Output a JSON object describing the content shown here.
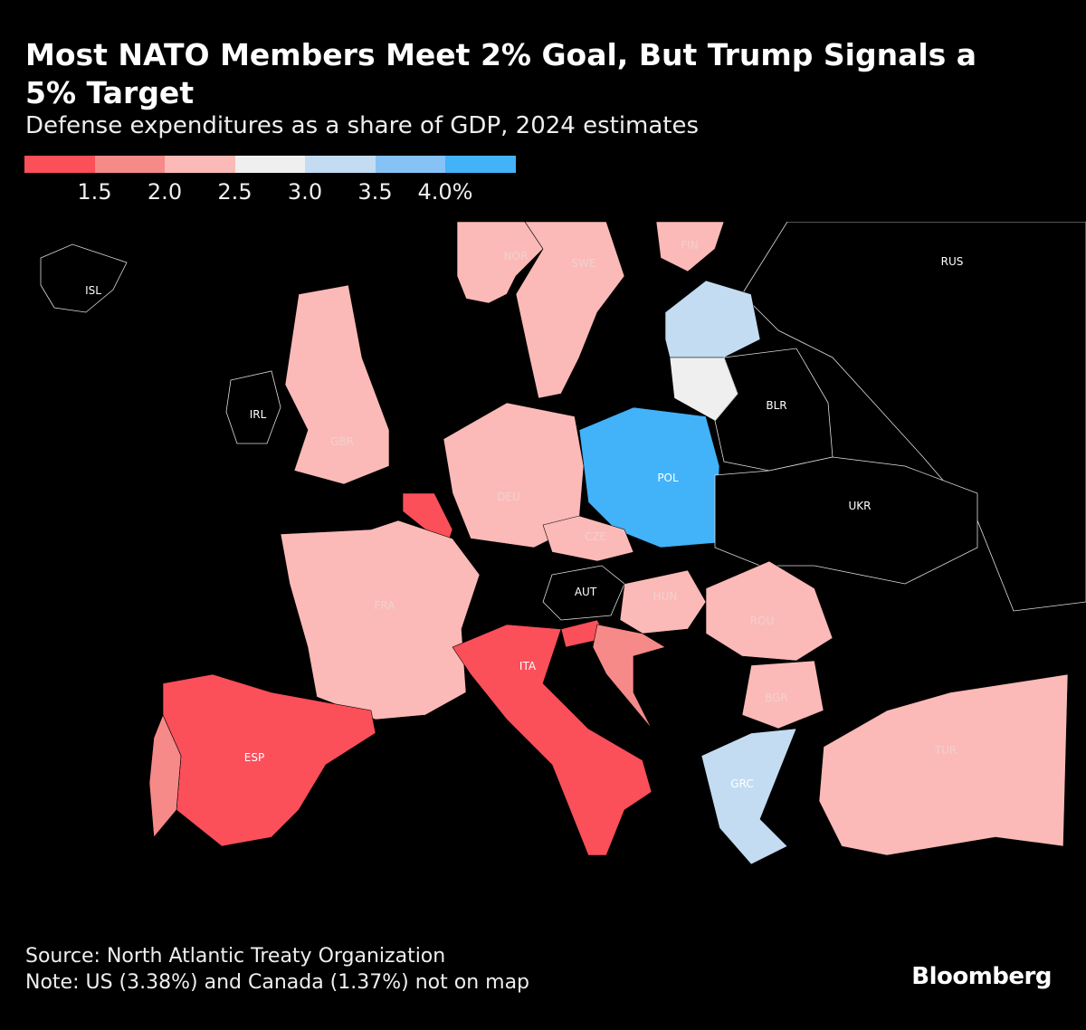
{
  "title": "Most NATO Members Meet 2% Goal, But Trump Signals a 5% Target",
  "subtitle": "Defense expenditures as a share of GDP, 2024 estimates",
  "legend": {
    "colors": [
      "#fb4f5a",
      "#f68a89",
      "#fbbab7",
      "#efefef",
      "#c3dcf2",
      "#86c2f5",
      "#42b2f9"
    ],
    "ticks": [
      "1.5",
      "2.0",
      "2.5",
      "3.0",
      "3.5",
      "4.0%"
    ]
  },
  "map": {
    "no_data_color": "#000000",
    "countries": [
      {
        "code": "ISL",
        "label": "ISL",
        "bin": null
      },
      {
        "code": "NOR",
        "label": "NOR",
        "bin": 2
      },
      {
        "code": "SWE",
        "label": "SWE",
        "bin": 2
      },
      {
        "code": "FIN",
        "label": "FIN",
        "bin": 2
      },
      {
        "code": "RUS",
        "label": "RUS",
        "bin": null
      },
      {
        "code": "IRL",
        "label": "IRL",
        "bin": null
      },
      {
        "code": "GBR",
        "label": "GBR",
        "bin": 2
      },
      {
        "code": "EST_LVA",
        "label": "",
        "bin": 4
      },
      {
        "code": "LTU",
        "label": "",
        "bin": 3
      },
      {
        "code": "BLR",
        "label": "BLR",
        "bin": null
      },
      {
        "code": "DEU",
        "label": "DEU",
        "bin": 2
      },
      {
        "code": "POL",
        "label": "POL",
        "bin": 6
      },
      {
        "code": "UKR",
        "label": "UKR",
        "bin": null
      },
      {
        "code": "BEL",
        "label": "",
        "bin": 0
      },
      {
        "code": "CZE",
        "label": "CZE",
        "bin": 2
      },
      {
        "code": "AUT",
        "label": "AUT",
        "bin": null
      },
      {
        "code": "FRA",
        "label": "FRA",
        "bin": 2
      },
      {
        "code": "HUN",
        "label": "HUN",
        "bin": 2
      },
      {
        "code": "ROU",
        "label": "ROU",
        "bin": 2
      },
      {
        "code": "ITA",
        "label": "ITA",
        "bin": 0
      },
      {
        "code": "SVN",
        "label": "",
        "bin": 0
      },
      {
        "code": "HRV",
        "label": "",
        "bin": 1
      },
      {
        "code": "BGR",
        "label": "BGR",
        "bin": 2
      },
      {
        "code": "ESP",
        "label": "ESP",
        "bin": 0
      },
      {
        "code": "PRT",
        "label": "",
        "bin": 1
      },
      {
        "code": "GRC",
        "label": "GRC",
        "bin": 4
      },
      {
        "code": "TUR",
        "label": "TUR",
        "bin": 2
      }
    ]
  },
  "footer": {
    "source": "Source: North Atlantic Treaty Organization",
    "note": "Note: US (3.38%) and Canada (1.37%) not on map",
    "brand": "Bloomberg"
  }
}
